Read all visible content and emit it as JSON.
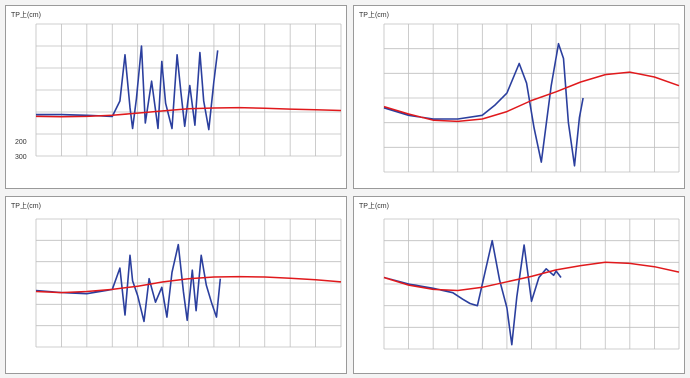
{
  "chart_data": [
    {
      "type": "line",
      "ylabel": "TP上(cm)",
      "y_tick_labels": [
        "200",
        "300"
      ],
      "grid": true,
      "colors": {
        "observed": "#2b3f9e",
        "model": "#e0191c",
        "grid": "#bfbfbf"
      },
      "y_range_rows": [
        0,
        6
      ],
      "x_range_cols": [
        0,
        12
      ],
      "series": [
        {
          "x": [
            0,
            1,
            2,
            3,
            3.3,
            3.5,
            3.7,
            3.8,
            3.95,
            4.15,
            4.3,
            4.55,
            4.8,
            4.95,
            5.1,
            5.35,
            5.55,
            5.7,
            5.85,
            6.05,
            6.25,
            6.45,
            6.6,
            6.8,
            7.0,
            7.15
          ],
          "y": [
            4.12,
            4.12,
            4.15,
            4.2,
            3.5,
            1.4,
            3.8,
            4.75,
            3.4,
            1.0,
            4.5,
            2.6,
            4.75,
            1.7,
            3.6,
            4.75,
            1.4,
            3.1,
            4.65,
            2.8,
            4.6,
            1.3,
            3.5,
            4.8,
            2.6,
            1.2
          ]
        },
        {
          "x": [
            0,
            1,
            2,
            3,
            4,
            5,
            6,
            7,
            8,
            9,
            10,
            11,
            12
          ],
          "y": [
            4.2,
            4.22,
            4.2,
            4.15,
            4.05,
            3.95,
            3.85,
            3.82,
            3.8,
            3.83,
            3.87,
            3.9,
            3.93
          ]
        }
      ]
    },
    {
      "type": "line",
      "ylabel": "TP上(cm)",
      "grid": true,
      "colors": {
        "observed": "#2b3f9e",
        "model": "#e0191c",
        "grid": "#bfbfbf"
      },
      "y_range_rows": [
        0,
        6
      ],
      "x_range_cols": [
        0,
        12
      ],
      "series": [
        {
          "x": [
            0,
            1,
            2,
            3,
            4,
            4.5,
            5,
            5.5,
            5.8,
            6.1,
            6.4,
            6.8,
            7.1,
            7.3,
            7.5,
            7.75,
            7.95,
            8.1
          ],
          "y": [
            3.4,
            3.7,
            3.85,
            3.85,
            3.7,
            3.3,
            2.8,
            1.6,
            2.4,
            4.2,
            5.6,
            2.5,
            0.8,
            1.4,
            4.0,
            5.75,
            3.8,
            3.0
          ]
        },
        {
          "x": [
            0,
            1,
            2,
            3,
            4,
            5,
            6,
            7,
            8,
            9,
            10,
            11,
            12
          ],
          "y": [
            3.35,
            3.65,
            3.9,
            3.95,
            3.85,
            3.55,
            3.1,
            2.75,
            2.35,
            2.05,
            1.95,
            2.15,
            2.5
          ]
        }
      ]
    },
    {
      "type": "line",
      "ylabel": "TP上(cm)",
      "grid": true,
      "colors": {
        "observed": "#2b3f9e",
        "model": "#e0191c",
        "grid": "#bfbfbf"
      },
      "y_range_rows": [
        0,
        6
      ],
      "x_range_cols": [
        0,
        12
      ],
      "series": [
        {
          "x": [
            0,
            1,
            2,
            3,
            3.3,
            3.5,
            3.7,
            3.8,
            4.0,
            4.25,
            4.45,
            4.7,
            4.95,
            5.15,
            5.35,
            5.6,
            5.8,
            5.95,
            6.15,
            6.3,
            6.5,
            6.7,
            6.9,
            7.1,
            7.25
          ],
          "y": [
            3.35,
            3.45,
            3.5,
            3.3,
            2.3,
            4.5,
            1.7,
            2.9,
            3.6,
            4.8,
            2.8,
            3.9,
            3.2,
            4.6,
            2.5,
            1.2,
            3.4,
            4.75,
            2.4,
            4.3,
            1.7,
            3.1,
            3.9,
            4.6,
            2.8
          ]
        },
        {
          "x": [
            0,
            1,
            2,
            3,
            4,
            5,
            6,
            7,
            8,
            9,
            10,
            11,
            12
          ],
          "y": [
            3.4,
            3.45,
            3.4,
            3.3,
            3.15,
            2.95,
            2.8,
            2.72,
            2.7,
            2.72,
            2.78,
            2.85,
            2.95
          ]
        }
      ]
    },
    {
      "type": "line",
      "ylabel": "TP上(cm)",
      "grid": true,
      "colors": {
        "observed": "#2b3f9e",
        "model": "#e0191c",
        "grid": "#bfbfbf"
      },
      "y_range_rows": [
        0,
        6
      ],
      "x_range_cols": [
        0,
        12
      ],
      "series": [
        {
          "x": [
            0,
            1,
            2,
            2.8,
            3.2,
            3.5,
            3.8,
            4.1,
            4.4,
            4.7,
            5.0,
            5.2,
            5.4,
            5.7,
            6.0,
            6.3,
            6.6,
            6.9,
            7.0,
            7.2
          ],
          "y": [
            2.7,
            3.0,
            3.2,
            3.4,
            3.7,
            3.9,
            4.0,
            2.5,
            1.0,
            2.8,
            4.1,
            5.8,
            3.6,
            1.2,
            3.8,
            2.7,
            2.3,
            2.6,
            2.4,
            2.7
          ]
        },
        {
          "x": [
            0,
            1,
            2,
            3,
            4,
            5,
            6,
            7,
            8,
            9,
            10,
            11,
            12
          ],
          "y": [
            2.7,
            3.05,
            3.25,
            3.3,
            3.15,
            2.9,
            2.65,
            2.35,
            2.15,
            2.0,
            2.05,
            2.2,
            2.45
          ]
        }
      ]
    }
  ]
}
